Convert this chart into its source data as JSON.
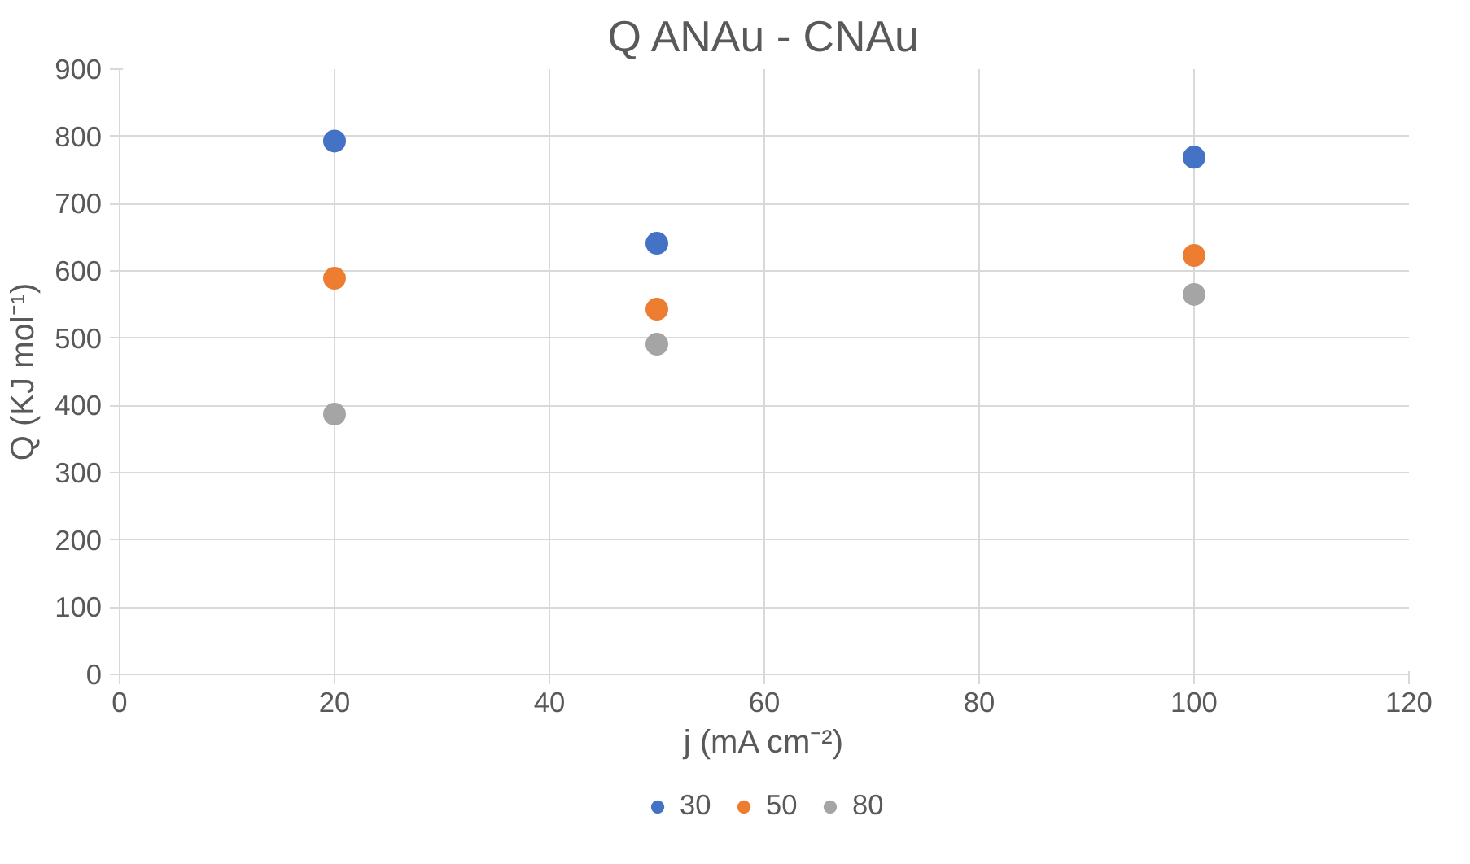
{
  "chart_data": {
    "type": "scatter",
    "title": "Q ANAu - CNAu",
    "xlabel": "j (mA cm⁻²)",
    "ylabel": "Q (KJ mol⁻¹)",
    "x": [
      20,
      50,
      100
    ],
    "series": [
      {
        "name": "30",
        "color": "#4472c4",
        "values": [
          793,
          641,
          769
        ]
      },
      {
        "name": "50",
        "color": "#ed7d31",
        "values": [
          589,
          543,
          623
        ]
      },
      {
        "name": "80",
        "color": "#a5a5a5",
        "values": [
          387,
          491,
          565
        ]
      }
    ],
    "xlim": [
      0,
      120
    ],
    "xticks": [
      0,
      20,
      40,
      60,
      80,
      100,
      120
    ],
    "ylim": [
      0,
      900
    ],
    "yticks": [
      0,
      100,
      200,
      300,
      400,
      500,
      600,
      700,
      800,
      900
    ],
    "grid": true,
    "legend": "bottom",
    "marker": "circle"
  }
}
